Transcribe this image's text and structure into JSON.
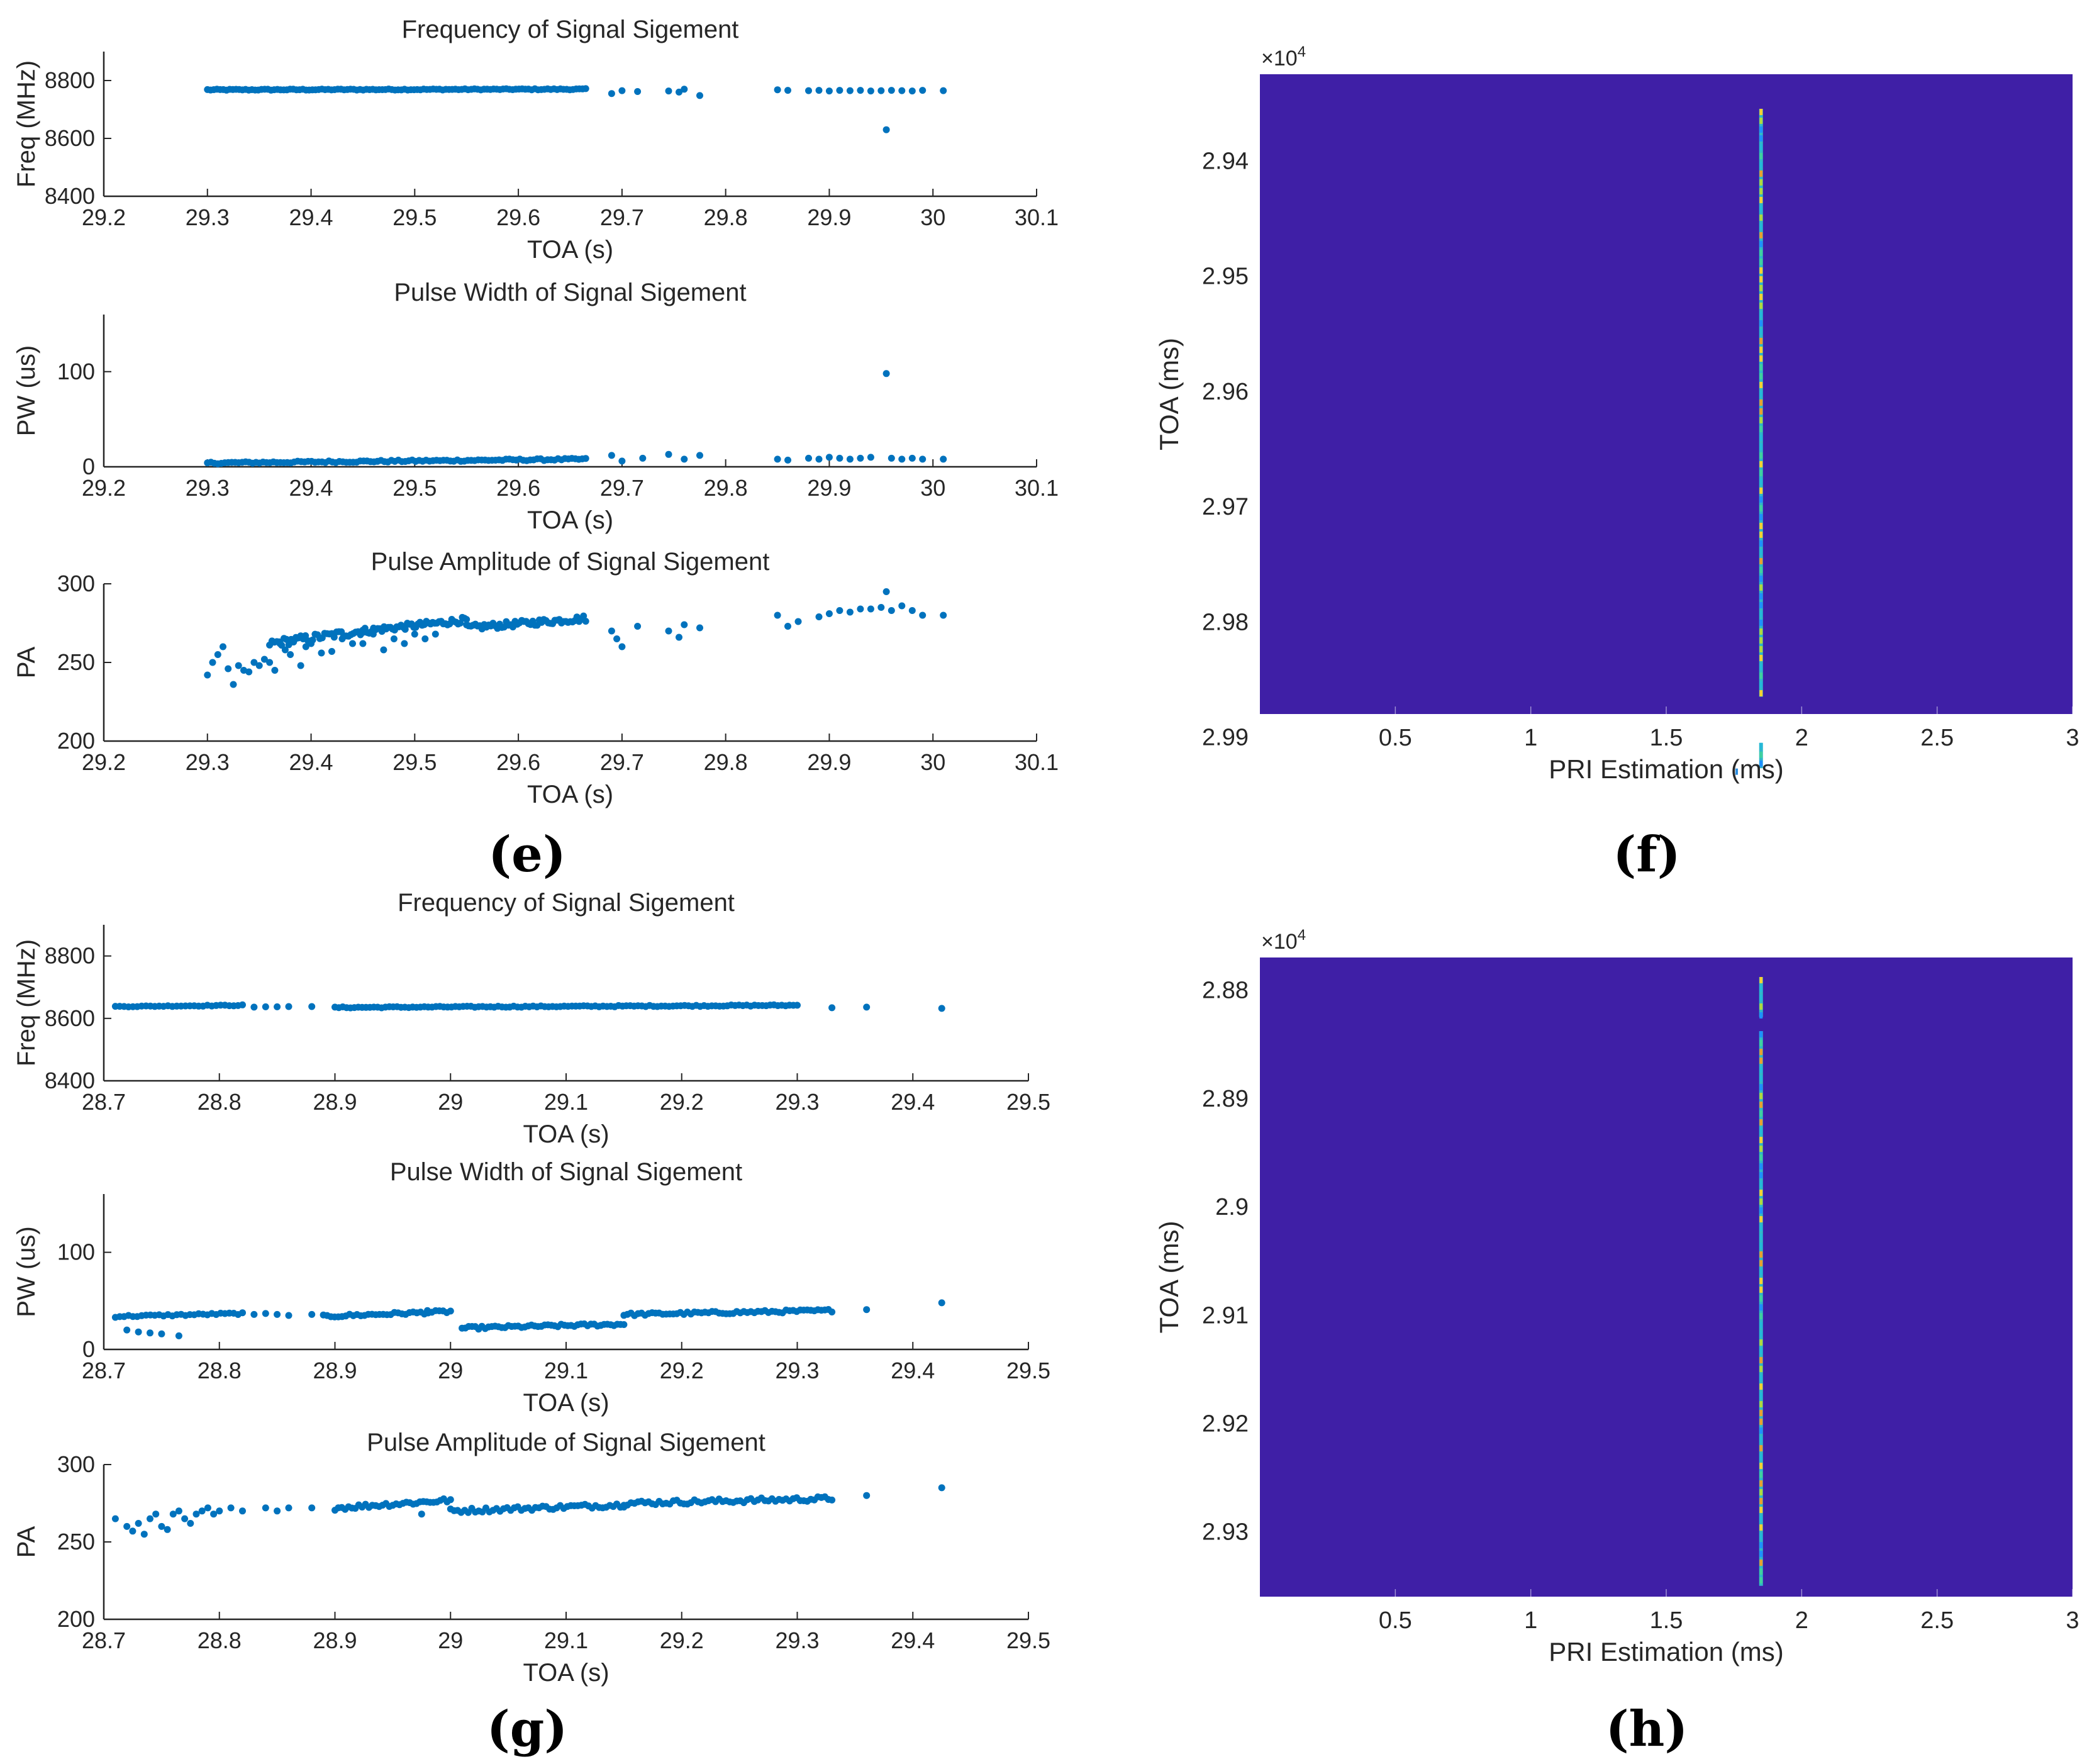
{
  "labels": {
    "e": "(e)",
    "f": "(f)",
    "g": "(g)",
    "h": "(h)"
  },
  "chart_data": [
    {
      "id": "e1",
      "type": "scatter",
      "title": "Frequency of Signal Sigement",
      "xlabel": "TOA (s)",
      "ylabel": "Freq (MHz)",
      "xlim": [
        29.2,
        30.1
      ],
      "ylim": [
        8400,
        8900
      ],
      "xticks": [
        29.2,
        29.3,
        29.4,
        29.5,
        29.6,
        29.7,
        29.8,
        29.9,
        30,
        30.1
      ],
      "xtick_labels": [
        "29.2",
        "29.3",
        "29.4",
        "29.5",
        "29.6",
        "29.7",
        "29.8",
        "29.9",
        "30",
        "30.1"
      ],
      "yticks": [
        8400,
        8600,
        8800
      ],
      "ytick_labels": [
        "8400",
        "8600",
        "8800"
      ],
      "segments": [
        [
          29.3,
          29.665,
          8768,
          8770,
          4,
          120
        ]
      ],
      "points": [
        [
          29.69,
          8755
        ],
        [
          29.7,
          8765
        ],
        [
          29.715,
          8762
        ],
        [
          29.745,
          8764
        ],
        [
          29.755,
          8760
        ],
        [
          29.76,
          8770
        ],
        [
          29.775,
          8748
        ],
        [
          29.85,
          8768
        ],
        [
          29.86,
          8766
        ],
        [
          29.88,
          8765
        ],
        [
          29.89,
          8766
        ],
        [
          29.9,
          8764
        ],
        [
          29.91,
          8766
        ],
        [
          29.92,
          8765
        ],
        [
          29.93,
          8766
        ],
        [
          29.94,
          8764
        ],
        [
          29.95,
          8765
        ],
        [
          29.96,
          8766
        ],
        [
          29.97,
          8765
        ],
        [
          29.98,
          8764
        ],
        [
          29.99,
          8766
        ],
        [
          30.01,
          8765
        ],
        [
          29.955,
          8630
        ]
      ]
    },
    {
      "id": "e2",
      "type": "scatter",
      "title": "Pulse Width of Signal Sigement",
      "xlabel": "TOA (s)",
      "ylabel": "PW (us)",
      "xlim": [
        29.2,
        30.1
      ],
      "ylim": [
        0,
        160
      ],
      "xticks": [
        29.2,
        29.3,
        29.4,
        29.5,
        29.6,
        29.7,
        29.8,
        29.9,
        30,
        30.1
      ],
      "xtick_labels": [
        "29.2",
        "29.3",
        "29.4",
        "29.5",
        "29.6",
        "29.7",
        "29.8",
        "29.9",
        "30",
        "30.1"
      ],
      "yticks": [
        0,
        100
      ],
      "ytick_labels": [
        "0",
        "100"
      ],
      "segments": [
        [
          29.3,
          29.665,
          4,
          8,
          2,
          110
        ]
      ],
      "points": [
        [
          29.69,
          12
        ],
        [
          29.7,
          6
        ],
        [
          29.72,
          9
        ],
        [
          29.745,
          13
        ],
        [
          29.76,
          8
        ],
        [
          29.775,
          12
        ],
        [
          29.85,
          8
        ],
        [
          29.86,
          7
        ],
        [
          29.88,
          9
        ],
        [
          29.89,
          8
        ],
        [
          29.9,
          10
        ],
        [
          29.91,
          9
        ],
        [
          29.92,
          8
        ],
        [
          29.93,
          9
        ],
        [
          29.94,
          10
        ],
        [
          29.955,
          98
        ],
        [
          29.96,
          9
        ],
        [
          29.97,
          8
        ],
        [
          29.98,
          9
        ],
        [
          29.99,
          8
        ],
        [
          30.01,
          8
        ]
      ]
    },
    {
      "id": "e3",
      "type": "scatter",
      "title": "Pulse Amplitude of Signal Sigement",
      "xlabel": "TOA (s)",
      "ylabel": "PA",
      "xlim": [
        29.2,
        30.1
      ],
      "ylim": [
        200,
        300
      ],
      "xticks": [
        29.2,
        29.3,
        29.4,
        29.5,
        29.6,
        29.7,
        29.8,
        29.9,
        30,
        30.1
      ],
      "xtick_labels": [
        "29.2",
        "29.3",
        "29.4",
        "29.5",
        "29.6",
        "29.7",
        "29.8",
        "29.9",
        "30",
        "30.1"
      ],
      "yticks": [
        200,
        250,
        300
      ],
      "ytick_labels": [
        "200",
        "250",
        "300"
      ],
      "segments": [
        [
          29.36,
          29.45,
          262,
          270,
          5,
          40
        ],
        [
          29.45,
          29.55,
          270,
          277,
          4,
          50
        ],
        [
          29.55,
          29.665,
          272,
          278,
          4,
          55
        ]
      ],
      "points": [
        [
          29.3,
          242
        ],
        [
          29.305,
          250
        ],
        [
          29.31,
          255
        ],
        [
          29.315,
          260
        ],
        [
          29.32,
          246
        ],
        [
          29.325,
          236
        ],
        [
          29.33,
          248
        ],
        [
          29.335,
          245
        ],
        [
          29.34,
          244
        ],
        [
          29.345,
          250
        ],
        [
          29.35,
          248
        ],
        [
          29.355,
          252
        ],
        [
          29.36,
          250
        ],
        [
          29.365,
          245
        ],
        [
          29.37,
          262
        ],
        [
          29.375,
          258
        ],
        [
          29.38,
          255
        ],
        [
          29.385,
          265
        ],
        [
          29.39,
          248
        ],
        [
          29.395,
          260
        ],
        [
          29.4,
          262
        ],
        [
          29.41,
          256
        ],
        [
          29.42,
          257
        ],
        [
          29.43,
          265
        ],
        [
          29.44,
          262
        ],
        [
          29.45,
          262
        ],
        [
          29.46,
          268
        ],
        [
          29.47,
          258
        ],
        [
          29.48,
          265
        ],
        [
          29.49,
          262
        ],
        [
          29.5,
          268
        ],
        [
          29.51,
          265
        ],
        [
          29.52,
          268
        ],
        [
          29.69,
          270
        ],
        [
          29.695,
          265
        ],
        [
          29.7,
          260
        ],
        [
          29.715,
          273
        ],
        [
          29.745,
          270
        ],
        [
          29.755,
          266
        ],
        [
          29.76,
          274
        ],
        [
          29.775,
          272
        ],
        [
          29.85,
          280
        ],
        [
          29.86,
          273
        ],
        [
          29.87,
          276
        ],
        [
          29.89,
          279
        ],
        [
          29.9,
          281
        ],
        [
          29.91,
          283
        ],
        [
          29.92,
          282
        ],
        [
          29.93,
          284
        ],
        [
          29.94,
          284
        ],
        [
          29.95,
          285
        ],
        [
          29.955,
          295
        ],
        [
          29.96,
          283
        ],
        [
          29.97,
          286
        ],
        [
          29.98,
          283
        ],
        [
          29.99,
          280
        ],
        [
          30.01,
          280
        ]
      ]
    },
    {
      "id": "g1",
      "type": "scatter",
      "title": "Frequency of Signal Sigement",
      "xlabel": "TOA (s)",
      "ylabel": "Freq (MHz)",
      "xlim": [
        28.7,
        29.5
      ],
      "ylim": [
        8400,
        8900
      ],
      "xticks": [
        28.7,
        28.8,
        28.9,
        29,
        29.1,
        29.2,
        29.3,
        29.4,
        29.5
      ],
      "xtick_labels": [
        "28.7",
        "28.8",
        "28.9",
        "29",
        "29.1",
        "29.2",
        "29.3",
        "29.4",
        "29.5"
      ],
      "yticks": [
        8400,
        8600,
        8800
      ],
      "ytick_labels": [
        "8400",
        "8600",
        "8800"
      ],
      "segments": [
        [
          28.71,
          28.82,
          8638,
          8642,
          3,
          30
        ],
        [
          28.9,
          29.3,
          8635,
          8642,
          4,
          120
        ]
      ],
      "points": [
        [
          28.83,
          8636
        ],
        [
          28.84,
          8637
        ],
        [
          28.85,
          8637
        ],
        [
          28.86,
          8638
        ],
        [
          28.88,
          8638
        ],
        [
          29.33,
          8634
        ],
        [
          29.36,
          8636
        ],
        [
          29.425,
          8632
        ]
      ]
    },
    {
      "id": "g2",
      "type": "scatter",
      "title": "Pulse Width of Signal Sigement",
      "xlabel": "TOA (s)",
      "ylabel": "PW (us)",
      "xlim": [
        28.7,
        29.5
      ],
      "ylim": [
        0,
        160
      ],
      "xticks": [
        28.7,
        28.8,
        28.9,
        29,
        29.1,
        29.2,
        29.3,
        29.4,
        29.5
      ],
      "xtick_labels": [
        "28.7",
        "28.8",
        "28.9",
        "29",
        "29.1",
        "29.2",
        "29.3",
        "29.4",
        "29.5"
      ],
      "yticks": [
        0,
        100
      ],
      "ytick_labels": [
        "0",
        "100"
      ],
      "segments": [
        [
          28.71,
          28.82,
          34,
          37,
          2,
          30
        ],
        [
          28.89,
          29.0,
          34,
          39,
          3,
          35
        ],
        [
          29.01,
          29.15,
          22,
          26,
          3,
          50
        ],
        [
          29.15,
          29.33,
          36,
          40,
          3,
          60
        ]
      ],
      "points": [
        [
          28.72,
          20
        ],
        [
          28.73,
          18
        ],
        [
          28.74,
          17
        ],
        [
          28.75,
          16
        ],
        [
          28.765,
          14
        ],
        [
          28.83,
          36
        ],
        [
          28.84,
          37
        ],
        [
          28.85,
          36
        ],
        [
          28.86,
          35
        ],
        [
          28.88,
          36
        ],
        [
          28.98,
          40
        ],
        [
          29.36,
          41
        ],
        [
          29.425,
          48
        ]
      ]
    },
    {
      "id": "g3",
      "type": "scatter",
      "title": "Pulse Amplitude of Signal Sigement",
      "xlabel": "TOA (s)",
      "ylabel": "PA",
      "xlim": [
        28.7,
        29.5
      ],
      "ylim": [
        200,
        300
      ],
      "xticks": [
        28.7,
        28.8,
        28.9,
        29,
        29.1,
        29.2,
        29.3,
        29.4,
        29.5
      ],
      "xtick_labels": [
        "28.7",
        "28.8",
        "28.9",
        "29",
        "29.1",
        "29.2",
        "29.3",
        "29.4",
        "29.5"
      ],
      "yticks": [
        200,
        250,
        300
      ],
      "ytick_labels": [
        "200",
        "250",
        "300"
      ],
      "segments": [
        [
          28.9,
          29.0,
          272,
          277,
          3,
          35
        ],
        [
          29.0,
          29.15,
          270,
          274,
          3,
          50
        ],
        [
          29.15,
          29.33,
          275,
          278,
          3,
          60
        ]
      ],
      "points": [
        [
          28.71,
          265
        ],
        [
          28.72,
          260
        ],
        [
          28.725,
          257
        ],
        [
          28.73,
          262
        ],
        [
          28.735,
          255
        ],
        [
          28.74,
          265
        ],
        [
          28.745,
          268
        ],
        [
          28.75,
          260
        ],
        [
          28.755,
          258
        ],
        [
          28.76,
          268
        ],
        [
          28.765,
          270
        ],
        [
          28.77,
          265
        ],
        [
          28.775,
          262
        ],
        [
          28.78,
          268
        ],
        [
          28.785,
          270
        ],
        [
          28.79,
          272
        ],
        [
          28.795,
          268
        ],
        [
          28.8,
          270
        ],
        [
          28.81,
          272
        ],
        [
          28.82,
          270
        ],
        [
          28.84,
          272
        ],
        [
          28.85,
          270
        ],
        [
          28.86,
          272
        ],
        [
          28.88,
          272
        ],
        [
          28.975,
          268
        ],
        [
          29.36,
          280
        ],
        [
          29.425,
          285
        ]
      ]
    },
    {
      "id": "f",
      "type": "heatmap",
      "xlabel": "PRI Estimation (ms)",
      "ylabel": "TOA (ms)",
      "multiplier": "×10",
      "multiplier_exp": "4",
      "xlim": [
        0,
        3
      ],
      "ylim": [
        29325,
        29880
      ],
      "xticks": [
        0.5,
        1,
        1.5,
        2,
        2.5,
        3
      ],
      "xtick_labels": [
        "0.5",
        "1",
        "1.5",
        "2",
        "2.5",
        "3"
      ],
      "yticks": [
        29400,
        29500,
        29600,
        29700,
        29800,
        29900
      ],
      "ytick_labels": [
        "2.94",
        "2.95",
        "2.96",
        "2.97",
        "2.98",
        "2.99"
      ],
      "background": "#3f1fa6",
      "ridge_x": 1.85,
      "ridge_segments": [
        [
          29355,
          29865
        ],
        [
          29905,
          29927
        ]
      ],
      "extra_marks": [
        [
          1.76,
          29930
        ]
      ]
    },
    {
      "id": "h",
      "type": "heatmap",
      "xlabel": "PRI Estimation (ms)",
      "ylabel": "TOA (ms)",
      "multiplier": "×10",
      "multiplier_exp": "4",
      "xlim": [
        0,
        3
      ],
      "ylim": [
        28770,
        29360
      ],
      "xticks": [
        0.5,
        1,
        1.5,
        2,
        2.5,
        3
      ],
      "xtick_labels": [
        "0.5",
        "1",
        "1.5",
        "2",
        "2.5",
        "3"
      ],
      "yticks": [
        28800,
        28900,
        29000,
        29100,
        29200,
        29300
      ],
      "ytick_labels": [
        "2.88",
        "2.89",
        "2.9",
        "2.91",
        "2.92",
        "2.93"
      ],
      "background": "#3f1fa6",
      "ridge_x": 1.85,
      "ridge_segments": [
        [
          28788,
          28825
        ],
        [
          28838,
          29350
        ]
      ],
      "extra_marks": []
    }
  ],
  "colors": {
    "point": "#0072bd",
    "axis": "#262626",
    "text": "#262626"
  }
}
